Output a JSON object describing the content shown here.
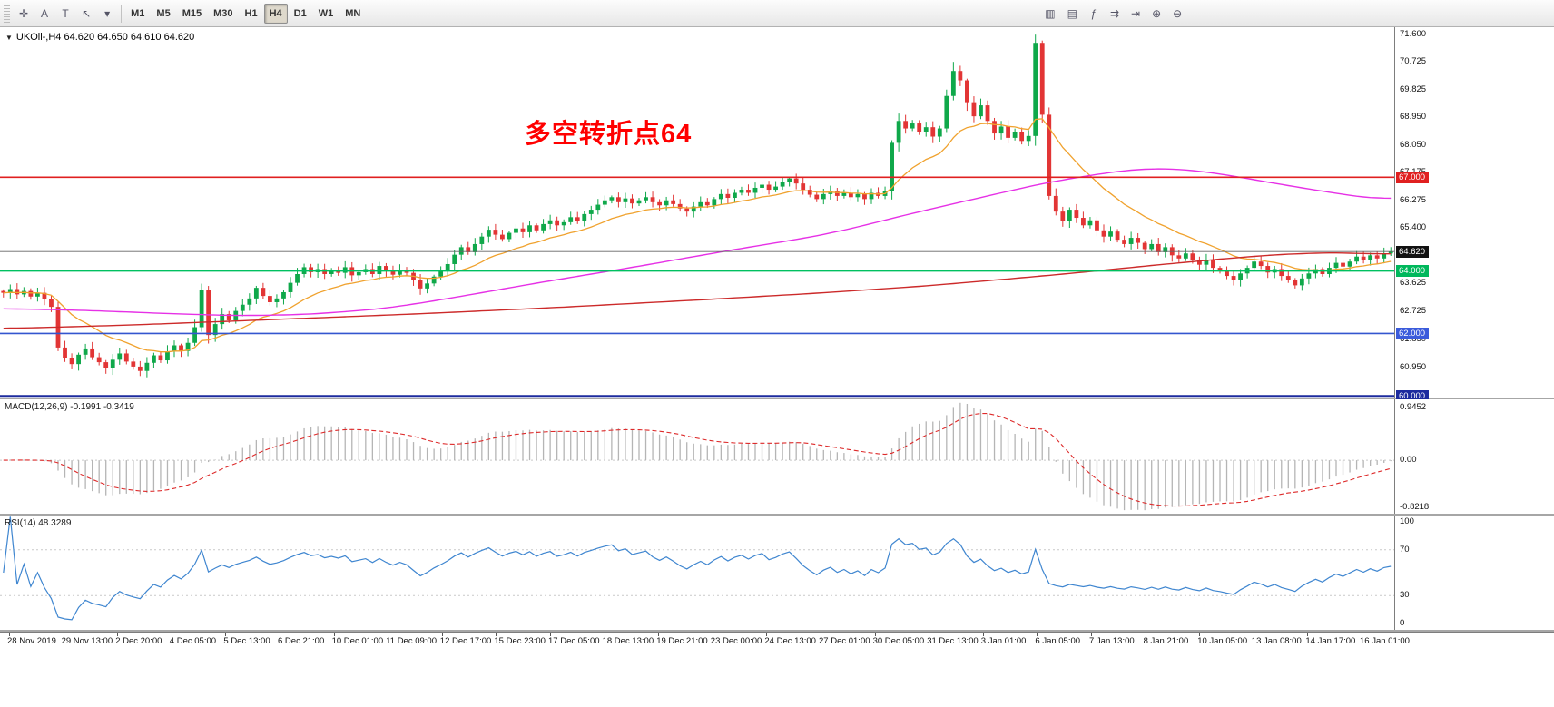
{
  "toolbar": {
    "left_icons": [
      {
        "name": "crosshair-icon",
        "glyph": "✛"
      },
      {
        "name": "text-annotation-icon",
        "glyph": "A"
      },
      {
        "name": "text-label-icon",
        "glyph": "T"
      },
      {
        "name": "arrow-tools-icon",
        "glyph": "↖"
      },
      {
        "name": "dropdown-arrow-icon",
        "glyph": "▾"
      }
    ],
    "timeframes": [
      {
        "label": "M1",
        "active": false
      },
      {
        "label": "M5",
        "active": false
      },
      {
        "label": "M15",
        "active": false
      },
      {
        "label": "M30",
        "active": false
      },
      {
        "label": "H1",
        "active": false
      },
      {
        "label": "H4",
        "active": true
      },
      {
        "label": "D1",
        "active": false
      },
      {
        "label": "W1",
        "active": false
      },
      {
        "label": "MN",
        "active": false
      }
    ],
    "right_icons": [
      {
        "name": "new-chart-icon",
        "glyph": "▥"
      },
      {
        "name": "chart-profiles-icon",
        "glyph": "▤"
      },
      {
        "name": "indicators-icon",
        "glyph": "ƒ"
      },
      {
        "name": "auto-scroll-icon",
        "glyph": "⇉"
      },
      {
        "name": "chart-shift-icon",
        "glyph": "⇥"
      },
      {
        "name": "zoom-in-icon",
        "glyph": "⊕"
      },
      {
        "name": "zoom-out-icon",
        "glyph": "⊖"
      }
    ]
  },
  "chart": {
    "title": "UKOil-,H4 64.620 64.650 64.610 64.620",
    "annotation": {
      "text": "多空转折点64",
      "color": "#ff0000"
    },
    "price_axis": {
      "ticks": [
        "71.600",
        "70.725",
        "69.825",
        "68.950",
        "68.050",
        "67.175",
        "66.275",
        "65.400",
        "64.500",
        "63.625",
        "62.725",
        "61.850",
        "60.950",
        "60.075"
      ],
      "badges": [
        {
          "label": "67.000",
          "value": 67.0,
          "color": "#e02020"
        },
        {
          "label": "64.620",
          "value": 64.62,
          "color": "#111111"
        },
        {
          "label": "64.000",
          "value": 64.0,
          "color": "#00b85c"
        },
        {
          "label": "62.000",
          "value": 62.0,
          "color": "#3b5bdb"
        },
        {
          "label": "60.000",
          "value": 60.0,
          "color": "#1d2b9e"
        }
      ]
    }
  },
  "macd": {
    "label": "MACD(12,26,9) -0.1991 -0.3419",
    "axis_top": "0.9452",
    "axis_zero": "0.00",
    "axis_bottom": "-0.8218"
  },
  "rsi": {
    "label": "RSI(14) 48.3289",
    "axis": [
      "100",
      "70",
      "30",
      "0"
    ]
  },
  "time_axis": {
    "labels": [
      "28 Nov 2019",
      "29 Nov 13:00",
      "2 Dec 20:00",
      "4 Dec 05:00",
      "5 Dec 13:00",
      "6 Dec 21:00",
      "10 Dec 01:00",
      "11 Dec 09:00",
      "12 Dec 17:00",
      "15 Dec 23:00",
      "17 Dec 05:00",
      "18 Dec 13:00",
      "19 Dec 21:00",
      "23 Dec 00:00",
      "24 Dec 13:00",
      "27 Dec 01:00",
      "30 Dec 05:00",
      "31 Dec 13:00",
      "3 Jan 01:00",
      "6 Jan 05:00",
      "7 Jan 13:00",
      "8 Jan 21:00",
      "10 Jan 05:00",
      "13 Jan 08:00",
      "14 Jan 17:00",
      "16 Jan 01:00"
    ]
  },
  "chart_data": {
    "type": "candlestick",
    "symbol": "UKOil-",
    "timeframe": "H4",
    "ohlc_display": {
      "open": 64.62,
      "high": 64.65,
      "low": 64.61,
      "close": 64.62
    },
    "price_range": [
      59.95,
      71.8
    ],
    "closes": [
      63.3,
      63.42,
      63.25,
      63.36,
      63.18,
      63.3,
      63.1,
      62.85,
      61.55,
      61.2,
      61.02,
      61.32,
      61.52,
      61.24,
      61.08,
      60.88,
      61.16,
      61.36,
      61.1,
      60.94,
      60.8,
      61.06,
      61.3,
      61.14,
      61.42,
      61.62,
      61.44,
      61.7,
      62.2,
      63.4,
      61.95,
      62.3,
      62.62,
      62.42,
      62.72,
      62.92,
      63.12,
      63.46,
      63.2,
      63.0,
      63.12,
      63.32,
      63.62,
      63.9,
      64.12,
      63.96,
      64.06,
      63.9,
      64.02,
      63.94,
      64.12,
      63.86,
      63.96,
      64.06,
      63.9,
      64.16,
      64.0,
      63.88,
      64.04,
      63.94,
      63.7,
      63.44,
      63.6,
      63.82,
      64.0,
      64.22,
      64.52,
      64.76,
      64.6,
      64.86,
      65.1,
      65.32,
      65.16,
      65.02,
      65.22,
      65.36,
      65.24,
      65.46,
      65.3,
      65.5,
      65.62,
      65.46,
      65.56,
      65.72,
      65.6,
      65.82,
      65.96,
      66.12,
      66.26,
      66.36,
      66.2,
      66.32,
      66.16,
      66.26,
      66.36,
      66.2,
      66.1,
      66.26,
      66.14,
      66.0,
      65.9,
      66.06,
      66.2,
      66.1,
      66.3,
      66.46,
      66.34,
      66.5,
      66.6,
      66.5,
      66.66,
      66.76,
      66.6,
      66.7,
      66.86,
      66.96,
      66.8,
      66.6,
      66.44,
      66.3,
      66.46,
      66.56,
      66.4,
      66.5,
      66.36,
      66.46,
      66.3,
      66.5,
      66.4,
      66.56,
      68.1,
      68.8,
      68.56,
      68.72,
      68.46,
      68.6,
      68.3,
      68.56,
      69.6,
      70.4,
      70.1,
      69.4,
      68.95,
      69.3,
      68.8,
      68.4,
      68.62,
      68.26,
      68.46,
      68.16,
      68.32,
      71.3,
      69.0,
      66.4,
      65.9,
      65.6,
      65.96,
      65.7,
      65.46,
      65.62,
      65.3,
      65.1,
      65.26,
      65.0,
      64.86,
      65.06,
      64.9,
      64.7,
      64.86,
      64.6,
      64.76,
      64.5,
      64.4,
      64.56,
      64.34,
      64.2,
      64.36,
      64.1,
      64.0,
      63.84,
      63.7,
      63.92,
      64.1,
      64.3,
      64.16,
      63.95,
      64.06,
      63.84,
      63.7,
      63.54,
      63.76,
      63.92,
      64.06,
      63.9,
      64.1,
      64.26,
      64.14,
      64.3,
      64.46,
      64.34,
      64.5,
      64.4,
      64.56,
      64.62
    ],
    "levels": [
      {
        "price": 67.0,
        "color": "#e02020",
        "width": 1.6
      },
      {
        "price": 64.0,
        "color": "#00c060",
        "width": 1.6
      },
      {
        "price": 62.0,
        "color": "#3456cf",
        "width": 1.6
      },
      {
        "price": 60.0,
        "color": "#1d2b9e",
        "width": 2.0
      }
    ],
    "current_price_line": {
      "price": 64.62,
      "color": "#666666"
    },
    "ma_orange": {
      "type": "ema",
      "period": 16,
      "color": "#f0a22e"
    },
    "ma_magenta": {
      "color": "#e631e6",
      "anchors": [
        [
          0,
          62.8
        ],
        [
          12,
          62.74
        ],
        [
          26,
          62.62
        ],
        [
          36,
          62.56
        ],
        [
          46,
          62.62
        ],
        [
          57,
          62.82
        ],
        [
          66,
          63.15
        ],
        [
          79,
          63.65
        ],
        [
          93,
          64.15
        ],
        [
          106,
          64.65
        ],
        [
          120,
          65.15
        ],
        [
          126,
          65.45
        ],
        [
          133,
          65.85
        ],
        [
          140,
          66.2
        ],
        [
          146,
          66.5
        ],
        [
          153,
          66.85
        ],
        [
          160,
          67.1
        ],
        [
          167,
          67.3
        ],
        [
          173,
          67.28
        ],
        [
          180,
          67.05
        ],
        [
          186,
          66.8
        ],
        [
          193,
          66.55
        ],
        [
          200,
          66.32
        ],
        [
          203,
          66.25
        ]
      ]
    },
    "ma_red": {
      "color": "#cc2a2a",
      "anchors": [
        [
          0,
          62.15
        ],
        [
          20,
          62.28
        ],
        [
          40,
          62.45
        ],
        [
          60,
          62.62
        ],
        [
          80,
          62.82
        ],
        [
          100,
          63.05
        ],
        [
          120,
          63.3
        ],
        [
          135,
          63.52
        ],
        [
          150,
          63.8
        ],
        [
          160,
          64.0
        ],
        [
          170,
          64.22
        ],
        [
          180,
          64.42
        ],
        [
          188,
          64.55
        ],
        [
          196,
          64.6
        ],
        [
          203,
          64.52
        ]
      ]
    },
    "macd": {
      "params": [
        12,
        26,
        9
      ],
      "main_value": -0.1991,
      "signal_value": -0.3419,
      "max": 0.9452,
      "min": -0.8218,
      "hist_color": "#b5b5b5",
      "signal_color": "#dd2a2a"
    },
    "rsi": {
      "period": 14,
      "value": 48.3289,
      "levels": [
        70,
        30
      ],
      "line_color": "#3f86d0"
    },
    "colors": {
      "up": "#0fa84a",
      "down": "#e23535"
    }
  }
}
